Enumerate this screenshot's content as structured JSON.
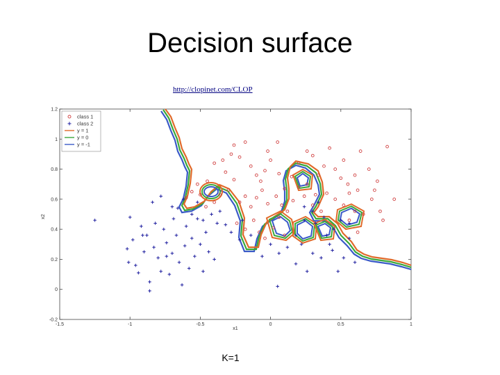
{
  "slide": {
    "title": "Decision surface",
    "link": "http://clopinet.com/CLOP",
    "caption": "K=1"
  },
  "colors": {
    "class1": "#d04040",
    "class2": "#2020a0",
    "y_pos1": "#e06a2a",
    "y_zero": "#3aa83a",
    "y_neg1": "#3a5ac8"
  },
  "chart_data": {
    "type": "scatter",
    "title": "",
    "xlabel": "x1",
    "ylabel": "x2",
    "xlim": [
      -1.5,
      1
    ],
    "ylim": [
      -0.2,
      1.2
    ],
    "xticks": [
      "-1.5",
      "-1",
      "-0.5",
      "0",
      "0.5",
      "1"
    ],
    "yticks": [
      "-0.2",
      "0",
      "0.2",
      "0.4",
      "0.6",
      "0.8",
      "1",
      "1.2"
    ],
    "grid": false,
    "legend_position": "top-left",
    "legend": [
      "class 1",
      "class 2",
      "y = 1",
      "y = 0",
      "y = -1"
    ],
    "series": [
      {
        "name": "class 1",
        "marker": "circle",
        "points": [
          [
            -0.52,
            0.7
          ],
          [
            -0.45,
            0.72
          ],
          [
            -0.4,
            0.84
          ],
          [
            -0.32,
            0.78
          ],
          [
            -0.28,
            0.9
          ],
          [
            -0.22,
            0.88
          ],
          [
            -0.18,
            0.98
          ],
          [
            -0.14,
            0.82
          ],
          [
            -0.1,
            0.76
          ],
          [
            -0.07,
            0.72
          ],
          [
            -0.04,
            0.79
          ],
          [
            0.0,
            0.86
          ],
          [
            0.06,
            0.77
          ],
          [
            0.1,
            0.67
          ],
          [
            0.15,
            0.75
          ],
          [
            0.2,
            0.84
          ],
          [
            0.26,
            0.92
          ],
          [
            0.3,
            0.89
          ],
          [
            0.34,
            0.76
          ],
          [
            0.38,
            0.82
          ],
          [
            0.42,
            0.94
          ],
          [
            0.46,
            0.8
          ],
          [
            0.5,
            0.74
          ],
          [
            0.55,
            0.7
          ],
          [
            0.6,
            0.76
          ],
          [
            0.64,
            0.92
          ],
          [
            0.7,
            0.8
          ],
          [
            0.76,
            0.72
          ],
          [
            0.83,
            0.95
          ],
          [
            0.88,
            0.6
          ],
          [
            -0.6,
            0.61
          ],
          [
            -0.56,
            0.65
          ],
          [
            -0.5,
            0.63
          ],
          [
            -0.46,
            0.55
          ],
          [
            -0.4,
            0.58
          ],
          [
            -0.36,
            0.63
          ],
          [
            -0.3,
            0.66
          ],
          [
            -0.26,
            0.73
          ],
          [
            -0.22,
            0.58
          ],
          [
            -0.18,
            0.62
          ],
          [
            -0.14,
            0.55
          ],
          [
            -0.1,
            0.61
          ],
          [
            -0.06,
            0.66
          ],
          [
            -0.02,
            0.57
          ],
          [
            0.04,
            0.62
          ],
          [
            0.08,
            0.56
          ],
          [
            0.12,
            0.52
          ],
          [
            0.16,
            0.59
          ],
          [
            0.2,
            0.68
          ],
          [
            0.24,
            0.62
          ],
          [
            0.3,
            0.56
          ],
          [
            0.36,
            0.52
          ],
          [
            0.4,
            0.64
          ],
          [
            0.46,
            0.6
          ],
          [
            0.52,
            0.56
          ],
          [
            0.56,
            0.64
          ],
          [
            0.6,
            0.52
          ],
          [
            0.66,
            0.5
          ],
          [
            0.72,
            0.6
          ],
          [
            0.78,
            0.52
          ],
          [
            -0.24,
            0.44
          ],
          [
            -0.18,
            0.4
          ],
          [
            -0.12,
            0.46
          ],
          [
            -0.08,
            0.38
          ],
          [
            -0.04,
            0.34
          ],
          [
            0.02,
            0.41
          ],
          [
            0.06,
            0.48
          ],
          [
            0.1,
            0.36
          ],
          [
            0.56,
            0.46
          ],
          [
            0.62,
            0.38
          ],
          [
            -0.02,
            0.92
          ],
          [
            0.05,
            0.98
          ],
          [
            -0.26,
            0.96
          ],
          [
            -0.34,
            0.86
          ],
          [
            0.52,
            0.86
          ],
          [
            0.62,
            0.66
          ],
          [
            0.74,
            0.66
          ],
          [
            0.8,
            0.46
          ],
          [
            0.26,
            0.7
          ],
          [
            0.32,
            0.63
          ]
        ]
      },
      {
        "name": "class 2",
        "marker": "plus",
        "points": [
          [
            -1.25,
            0.46
          ],
          [
            -1.0,
            0.48
          ],
          [
            -1.01,
            0.18
          ],
          [
            -0.98,
            0.33
          ],
          [
            -0.94,
            0.11
          ],
          [
            -0.92,
            0.42
          ],
          [
            -0.9,
            0.25
          ],
          [
            -0.88,
            0.36
          ],
          [
            -0.86,
            0.05
          ],
          [
            -0.83,
            0.28
          ],
          [
            -0.82,
            0.44
          ],
          [
            -0.8,
            0.21
          ],
          [
            -0.78,
            0.12
          ],
          [
            -0.76,
            0.4
          ],
          [
            -0.74,
            0.31
          ],
          [
            -0.72,
            0.1
          ],
          [
            -0.7,
            0.24
          ],
          [
            -0.69,
            0.47
          ],
          [
            -0.67,
            0.36
          ],
          [
            -0.65,
            0.18
          ],
          [
            -0.63,
            0.03
          ],
          [
            -0.61,
            0.29
          ],
          [
            -0.6,
            0.42
          ],
          [
            -0.58,
            0.14
          ],
          [
            -0.56,
            0.34
          ],
          [
            -0.54,
            0.22
          ],
          [
            -0.52,
            0.47
          ],
          [
            -0.5,
            0.3
          ],
          [
            -0.48,
            0.12
          ],
          [
            -0.46,
            0.38
          ],
          [
            -0.44,
            0.25
          ],
          [
            -0.42,
            0.5
          ],
          [
            -0.4,
            0.2
          ],
          [
            -0.38,
            0.44
          ],
          [
            -0.7,
            0.55
          ],
          [
            -0.78,
            0.62
          ],
          [
            -0.84,
            0.58
          ],
          [
            -0.86,
            -0.01
          ],
          [
            -0.91,
            0.36
          ],
          [
            -0.96,
            0.16
          ],
          [
            -1.02,
            0.27
          ],
          [
            -0.74,
            0.22
          ],
          [
            -0.66,
            0.54
          ],
          [
            -0.62,
            0.6
          ],
          [
            -0.56,
            0.5
          ],
          [
            -0.52,
            0.58
          ],
          [
            -0.48,
            0.46
          ],
          [
            -0.32,
            0.43
          ],
          [
            -0.22,
            0.33
          ],
          [
            -0.14,
            0.36
          ],
          [
            -0.06,
            0.22
          ],
          [
            0.0,
            0.3
          ],
          [
            0.06,
            0.24
          ],
          [
            0.12,
            0.28
          ],
          [
            0.18,
            0.17
          ],
          [
            0.22,
            0.3
          ],
          [
            0.26,
            0.12
          ],
          [
            0.3,
            0.24
          ],
          [
            0.36,
            0.21
          ],
          [
            0.4,
            0.36
          ],
          [
            0.44,
            0.26
          ],
          [
            0.48,
            0.12
          ],
          [
            0.52,
            0.21
          ],
          [
            0.56,
            0.34
          ],
          [
            0.6,
            0.18
          ],
          [
            0.32,
            0.44
          ],
          [
            0.38,
            0.48
          ],
          [
            0.45,
            0.4
          ],
          [
            0.5,
            0.46
          ],
          [
            0.56,
            0.44
          ],
          [
            0.24,
            0.55
          ],
          [
            0.3,
            0.52
          ],
          [
            0.34,
            0.58
          ],
          [
            0.05,
            0.02
          ],
          [
            -0.2,
            0.46
          ],
          [
            -0.28,
            0.38
          ],
          [
            -0.36,
            0.52
          ],
          [
            0.18,
            0.36
          ],
          [
            0.42,
            0.3
          ],
          [
            0.24,
            0.46
          ]
        ]
      }
    ]
  }
}
